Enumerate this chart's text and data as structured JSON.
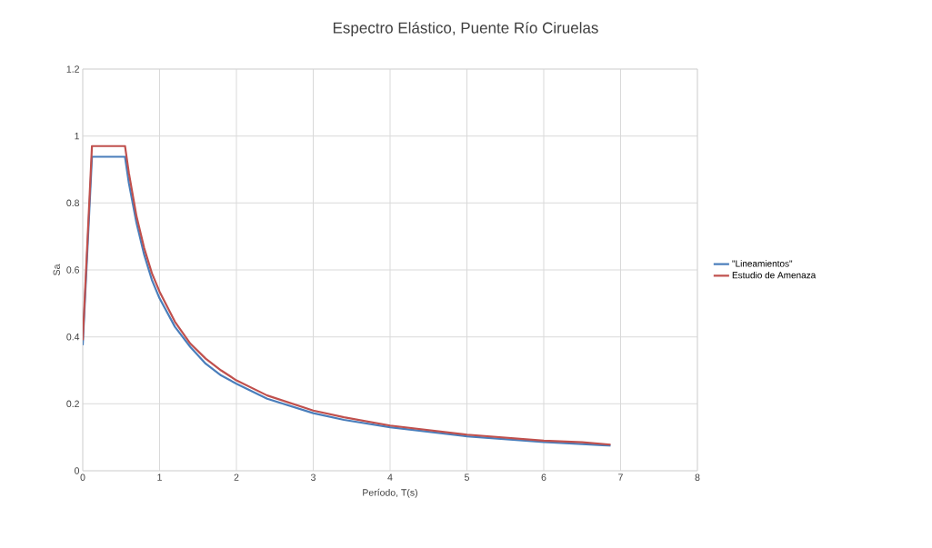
{
  "chart_data": {
    "type": "line",
    "title": "Espectro Elástico, Puente Río Ciruelas",
    "xlabel": "Período, T(s)",
    "ylabel": "Sa",
    "x": [
      0,
      0.12,
      0.55,
      0.6,
      0.7,
      0.8,
      0.9,
      1.0,
      1.2,
      1.4,
      1.6,
      1.8,
      2.0,
      2.4,
      3.0,
      3.4,
      4.0,
      5.0,
      6.0,
      6.5,
      6.87
    ],
    "series": [
      {
        "name": "\"Lineamientos\"",
        "color": "#4a7ebb",
        "values": [
          0.375,
          0.938,
          0.938,
          0.86,
          0.74,
          0.645,
          0.57,
          0.515,
          0.43,
          0.37,
          0.32,
          0.285,
          0.26,
          0.215,
          0.172,
          0.152,
          0.13,
          0.103,
          0.086,
          0.08,
          0.075
        ]
      },
      {
        "name": "Estudio de Amenaza",
        "color": "#c0504d",
        "values": [
          0.39,
          0.97,
          0.97,
          0.89,
          0.76,
          0.665,
          0.59,
          0.535,
          0.445,
          0.38,
          0.335,
          0.3,
          0.27,
          0.225,
          0.18,
          0.16,
          0.135,
          0.108,
          0.09,
          0.085,
          0.078
        ]
      }
    ],
    "xlim": [
      0,
      8
    ],
    "xticks": [
      0,
      1,
      2,
      3,
      4,
      5,
      6,
      7,
      8
    ],
    "ylim": [
      0,
      1.2
    ],
    "yticks": [
      0,
      0.2,
      0.4,
      0.6,
      0.8,
      1,
      1.2
    ],
    "grid": true,
    "legend": "right",
    "marker": "none",
    "line_style": "solid"
  }
}
